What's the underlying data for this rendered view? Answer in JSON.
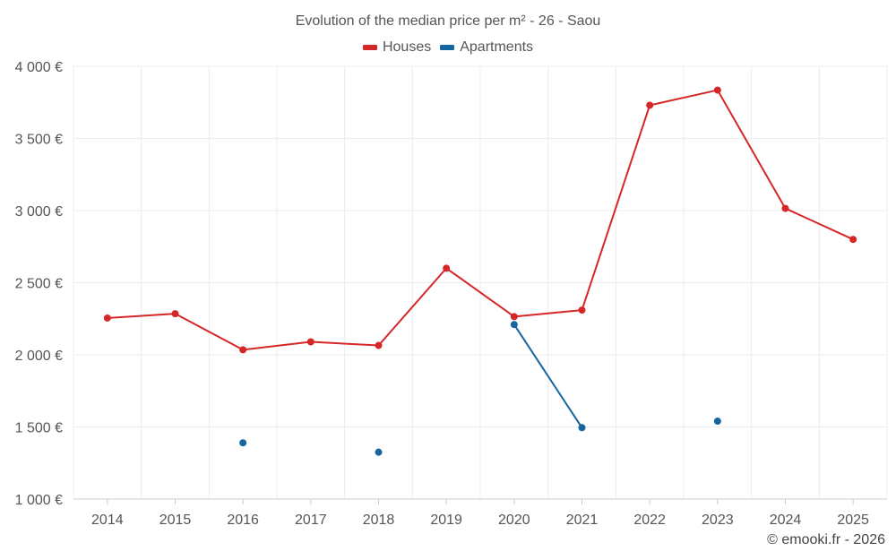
{
  "chart_data": {
    "type": "line",
    "title": "Evolution of the median price per m² - 26 - Saou",
    "categories": [
      "2014",
      "2015",
      "2016",
      "2017",
      "2018",
      "2019",
      "2020",
      "2021",
      "2022",
      "2023",
      "2024",
      "2025"
    ],
    "y_ticks": [
      1000,
      1500,
      2000,
      2500,
      3000,
      3500,
      4000
    ],
    "y_tick_labels": [
      "1 000 €",
      "1 500 €",
      "2 000 €",
      "2 500 €",
      "3 000 €",
      "3 500 €",
      "4 000 €"
    ],
    "ylim": [
      1000,
      4000
    ],
    "grid": true,
    "legend_position": "top-center",
    "series": [
      {
        "name": "Houses",
        "color": "#d62728",
        "values": [
          2255,
          2285,
          2035,
          2090,
          2065,
          2600,
          2265,
          2310,
          3730,
          3835,
          3015,
          2800
        ]
      },
      {
        "name": "Apartments",
        "color": "#1565a0",
        "values": [
          null,
          null,
          1390,
          null,
          1325,
          null,
          2210,
          1495,
          null,
          1540,
          null,
          null
        ]
      }
    ]
  },
  "footer": {
    "copyright": "© emooki.fr - 2026"
  }
}
